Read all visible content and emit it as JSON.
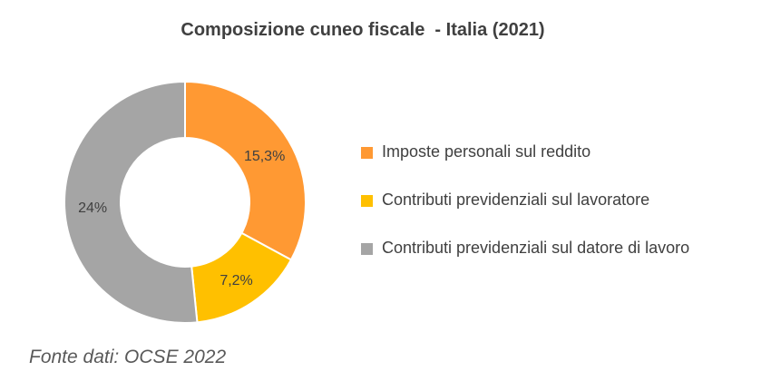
{
  "chart_data": {
    "type": "pie",
    "title": "Composizione cuneo fiscale  - Italia (2021)",
    "categories": [
      "Imposte personali sul reddito",
      "Contributi previdenziali sul lavoratore",
      "Contributi previdenziali sul datore di lavoro"
    ],
    "values": [
      15.3,
      7.2,
      24
    ],
    "data_labels": [
      "15,3%",
      "7,2%",
      "24%"
    ],
    "colors": [
      "#FF9933",
      "#FFC000",
      "#A5A5A5"
    ],
    "donut": true,
    "legend_position": "right"
  },
  "source_note": "Fonte dati: OCSE 2022"
}
